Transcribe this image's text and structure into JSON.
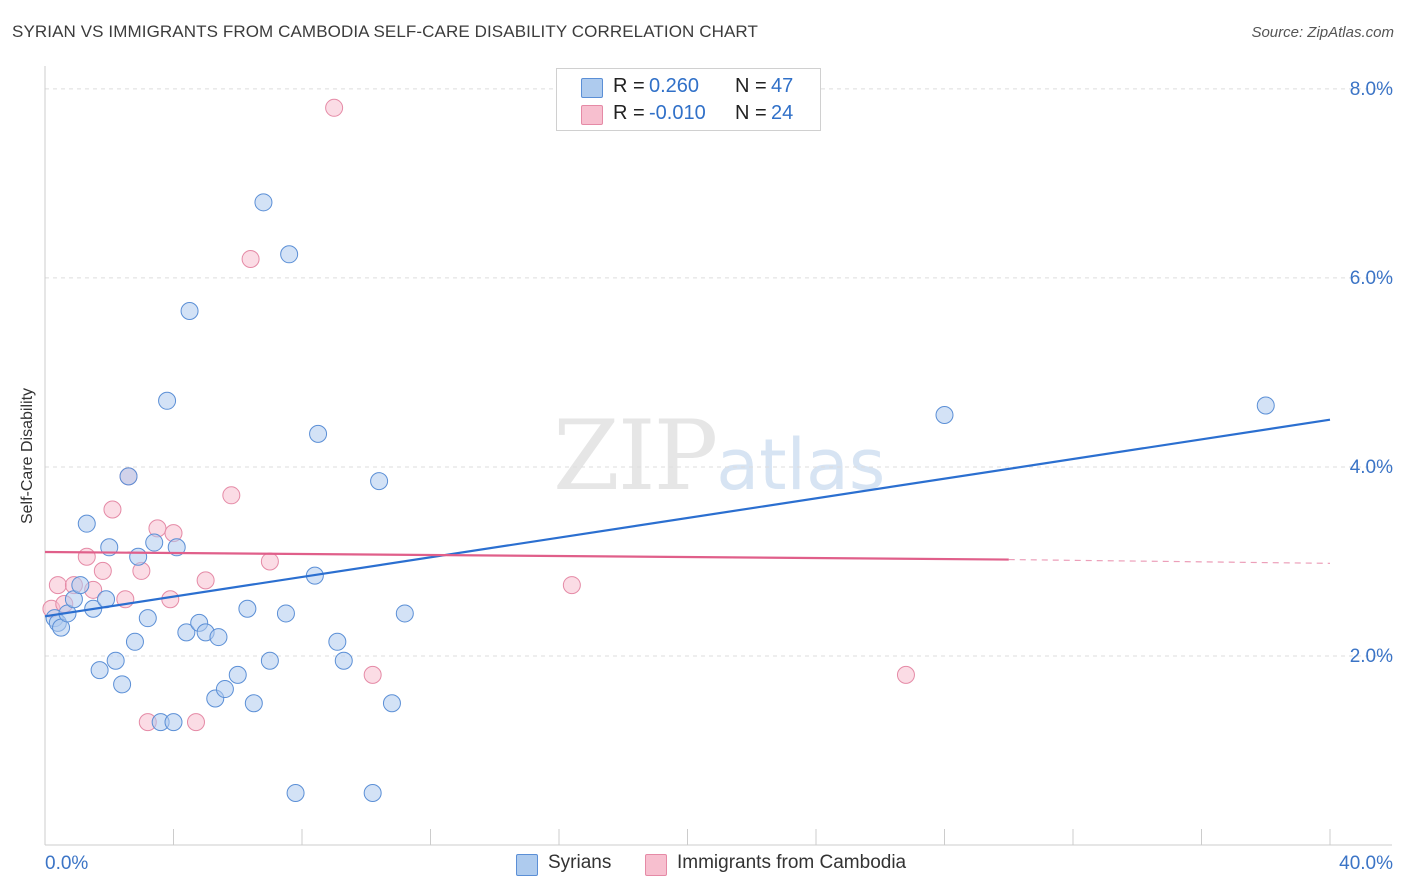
{
  "header": {
    "title": "SYRIAN VS IMMIGRANTS FROM CAMBODIA SELF-CARE DISABILITY CORRELATION CHART",
    "source": "Source: ZipAtlas.com"
  },
  "watermark": {
    "zip": "ZIP",
    "atlas": "atlas"
  },
  "legend_top": {
    "rows": [
      {
        "r_label": "R =",
        "r_value": "0.260",
        "n_label": "N =",
        "n_value": "47"
      },
      {
        "r_label": "R =",
        "r_value": "-0.010",
        "n_label": "N =",
        "n_value": "24"
      }
    ]
  },
  "legend_bottom": {
    "items": [
      {
        "label": "Syrians"
      },
      {
        "label": "Immigrants from Cambodia"
      }
    ]
  },
  "chart_data": {
    "type": "scatter",
    "title": "SYRIAN VS IMMIGRANTS FROM CAMBODIA SELF-CARE DISABILITY CORRELATION CHART",
    "xlabel": "",
    "ylabel": "Self-Care Disability",
    "xlim": [
      0,
      40
    ],
    "ylim": [
      0,
      8.2
    ],
    "x_ticks_labeled": [
      "0.0%",
      "40.0%"
    ],
    "y_ticks": [
      {
        "value": 2,
        "label": "2.0%"
      },
      {
        "value": 4,
        "label": "4.0%"
      },
      {
        "value": 6,
        "label": "6.0%"
      },
      {
        "value": 8,
        "label": "8.0%"
      }
    ],
    "grid": true,
    "colors": {
      "syrians_fill": "#aecbee",
      "syrians_stroke": "#5b8fd6",
      "syrians_line": "#2b6fd0",
      "cambodia_fill": "#f7bfcf",
      "cambodia_stroke": "#e58aa6",
      "cambodia_line": "#e05f8a",
      "label_blue": "#3b74c6"
    },
    "series": [
      {
        "name": "Syrians",
        "points": [
          [
            0.3,
            2.4
          ],
          [
            0.4,
            2.35
          ],
          [
            0.5,
            2.3
          ],
          [
            0.7,
            2.45
          ],
          [
            0.9,
            2.6
          ],
          [
            1.1,
            2.75
          ],
          [
            1.3,
            3.4
          ],
          [
            1.5,
            2.5
          ],
          [
            1.7,
            1.85
          ],
          [
            1.9,
            2.6
          ],
          [
            2.0,
            3.15
          ],
          [
            2.2,
            1.95
          ],
          [
            2.4,
            1.7
          ],
          [
            2.6,
            3.9
          ],
          [
            2.8,
            2.15
          ],
          [
            2.9,
            3.05
          ],
          [
            3.2,
            2.4
          ],
          [
            3.4,
            3.2
          ],
          [
            3.6,
            1.3
          ],
          [
            3.8,
            4.7
          ],
          [
            4.0,
            1.3
          ],
          [
            4.1,
            3.15
          ],
          [
            4.4,
            2.25
          ],
          [
            4.5,
            5.65
          ],
          [
            4.8,
            2.35
          ],
          [
            5.0,
            2.25
          ],
          [
            5.3,
            1.55
          ],
          [
            5.4,
            2.2
          ],
          [
            5.6,
            1.65
          ],
          [
            6.0,
            1.8
          ],
          [
            6.3,
            2.5
          ],
          [
            6.5,
            1.5
          ],
          [
            6.8,
            6.8
          ],
          [
            7.0,
            1.95
          ],
          [
            7.5,
            2.45
          ],
          [
            7.6,
            6.25
          ],
          [
            7.8,
            0.55
          ],
          [
            8.4,
            2.85
          ],
          [
            8.5,
            4.35
          ],
          [
            9.1,
            2.15
          ],
          [
            9.3,
            1.95
          ],
          [
            10.2,
            0.55
          ],
          [
            10.4,
            3.85
          ],
          [
            10.8,
            1.5
          ],
          [
            11.2,
            2.45
          ],
          [
            28.0,
            4.55
          ],
          [
            38.0,
            4.65
          ]
        ],
        "trend": {
          "x": [
            0,
            40
          ],
          "y": [
            2.42,
            4.5
          ]
        }
      },
      {
        "name": "Immigrants from Cambodia",
        "points": [
          [
            0.2,
            2.5
          ],
          [
            0.4,
            2.75
          ],
          [
            0.6,
            2.55
          ],
          [
            0.9,
            2.75
          ],
          [
            1.3,
            3.05
          ],
          [
            1.5,
            2.7
          ],
          [
            1.8,
            2.9
          ],
          [
            2.1,
            3.55
          ],
          [
            2.5,
            2.6
          ],
          [
            2.6,
            3.9
          ],
          [
            3.0,
            2.9
          ],
          [
            3.2,
            1.3
          ],
          [
            3.5,
            3.35
          ],
          [
            3.9,
            2.6
          ],
          [
            4.0,
            3.3
          ],
          [
            4.7,
            1.3
          ],
          [
            5.0,
            2.8
          ],
          [
            5.8,
            3.7
          ],
          [
            6.4,
            6.2
          ],
          [
            7.0,
            3.0
          ],
          [
            9.0,
            7.8
          ],
          [
            10.2,
            1.8
          ],
          [
            16.4,
            2.75
          ],
          [
            26.8,
            1.8
          ]
        ],
        "trend": {
          "x": [
            0,
            30
          ],
          "y": [
            3.1,
            3.02
          ],
          "dashed_to": [
            40,
            2.98
          ]
        }
      }
    ]
  }
}
